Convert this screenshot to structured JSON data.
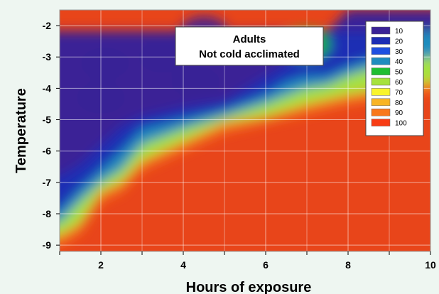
{
  "chart_data": {
    "type": "heatmap",
    "annotation": [
      "Adults",
      "Not cold acclimated"
    ],
    "xlabel": "Hours of exposure",
    "ylabel": "Temperature",
    "x_ticks": [
      2,
      4,
      6,
      8,
      10
    ],
    "y_ticks": [
      -9,
      -8,
      -7,
      -6,
      -5,
      -4,
      -3,
      -2
    ],
    "xlim": [
      1,
      10
    ],
    "ylim": [
      -1.5,
      -9.2
    ],
    "y_axis_inverted": true,
    "grid": true,
    "legend_position": "top-right",
    "legend": [
      {
        "label": "10",
        "color": "#3a2296"
      },
      {
        "label": "20",
        "color": "#1c2db4"
      },
      {
        "label": "30",
        "color": "#1e4fe0"
      },
      {
        "label": "40",
        "color": "#1e8cbe"
      },
      {
        "label": "50",
        "color": "#1ebe32"
      },
      {
        "label": "60",
        "color": "#a6e23c"
      },
      {
        "label": "70",
        "color": "#f8f42c"
      },
      {
        "label": "80",
        "color": "#f8b424"
      },
      {
        "label": "90",
        "color": "#f8781c"
      },
      {
        "label": "100",
        "color": "#f83c14"
      }
    ],
    "contour_boundaries": [
      {
        "level": 10,
        "points": [
          [
            1.0,
            -6.8
          ],
          [
            1.5,
            -6.4
          ],
          [
            2.0,
            -5.8
          ],
          [
            2.5,
            -5.2
          ],
          [
            3.0,
            -4.9
          ],
          [
            4.0,
            -4.6
          ],
          [
            5.0,
            -4.4
          ],
          [
            5.5,
            -4.0
          ],
          [
            6.0,
            -3.6
          ],
          [
            6.5,
            -3.2
          ],
          [
            7.0,
            -2.7
          ],
          [
            7.5,
            -2.2
          ],
          [
            8.0,
            -1.5
          ]
        ]
      },
      {
        "level": 30,
        "points": [
          [
            1.0,
            -7.9
          ],
          [
            1.5,
            -7.2
          ],
          [
            2.0,
            -6.6
          ],
          [
            2.5,
            -6.0
          ],
          [
            3.0,
            -5.3
          ],
          [
            4.0,
            -5.0
          ],
          [
            5.0,
            -4.7
          ],
          [
            6.0,
            -4.2
          ],
          [
            6.5,
            -3.8
          ],
          [
            7.0,
            -3.6
          ],
          [
            7.5,
            -3.6
          ],
          [
            8.0,
            -3.3
          ],
          [
            8.7,
            -3.0
          ],
          [
            9.0,
            -2.2
          ],
          [
            9.3,
            -1.5
          ]
        ]
      },
      {
        "level": 50,
        "points": [
          [
            1.0,
            -8.3
          ],
          [
            1.5,
            -7.6
          ],
          [
            2.0,
            -7.0
          ],
          [
            2.5,
            -6.6
          ],
          [
            3.0,
            -5.8
          ],
          [
            4.0,
            -5.3
          ],
          [
            5.0,
            -4.9
          ],
          [
            6.0,
            -4.5
          ],
          [
            7.0,
            -4.0
          ],
          [
            7.5,
            -3.9
          ],
          [
            8.0,
            -3.6
          ],
          [
            9.0,
            -3.2
          ],
          [
            9.5,
            -3.1
          ],
          [
            10.0,
            -3.0
          ]
        ]
      },
      {
        "level": 70,
        "points": [
          [
            1.0,
            -8.7
          ],
          [
            1.5,
            -8.3
          ],
          [
            2.0,
            -7.3
          ],
          [
            2.5,
            -7.0
          ],
          [
            3.0,
            -6.3
          ],
          [
            4.0,
            -5.7
          ],
          [
            5.0,
            -5.1
          ],
          [
            6.0,
            -4.9
          ],
          [
            7.0,
            -4.5
          ],
          [
            8.0,
            -4.2
          ],
          [
            9.0,
            -4.0
          ],
          [
            10.0,
            -3.8
          ]
        ]
      },
      {
        "level": 100,
        "points": [
          [
            1.0,
            -9.0
          ],
          [
            1.5,
            -8.6
          ],
          [
            2.0,
            -7.6
          ],
          [
            2.5,
            -7.3
          ],
          [
            3.0,
            -6.6
          ],
          [
            4.0,
            -6.0
          ],
          [
            5.0,
            -5.4
          ],
          [
            6.0,
            -5.1
          ],
          [
            7.0,
            -4.8
          ],
          [
            8.0,
            -4.5
          ],
          [
            9.0,
            -4.3
          ],
          [
            10.0,
            -4.1
          ]
        ]
      }
    ],
    "low_islands": [
      {
        "x": 2.0,
        "y": -4.3,
        "value": 10
      },
      {
        "x": 2.1,
        "y": -3.2,
        "value": 10
      },
      {
        "x": 3.5,
        "y": -3.0,
        "value": 10
      },
      {
        "x": 4.3,
        "y": -3.8,
        "value": 10
      },
      {
        "x": 4.5,
        "y": -2.2,
        "value": 10
      },
      {
        "x": 7.0,
        "y": -2.6,
        "value": 50
      }
    ]
  }
}
